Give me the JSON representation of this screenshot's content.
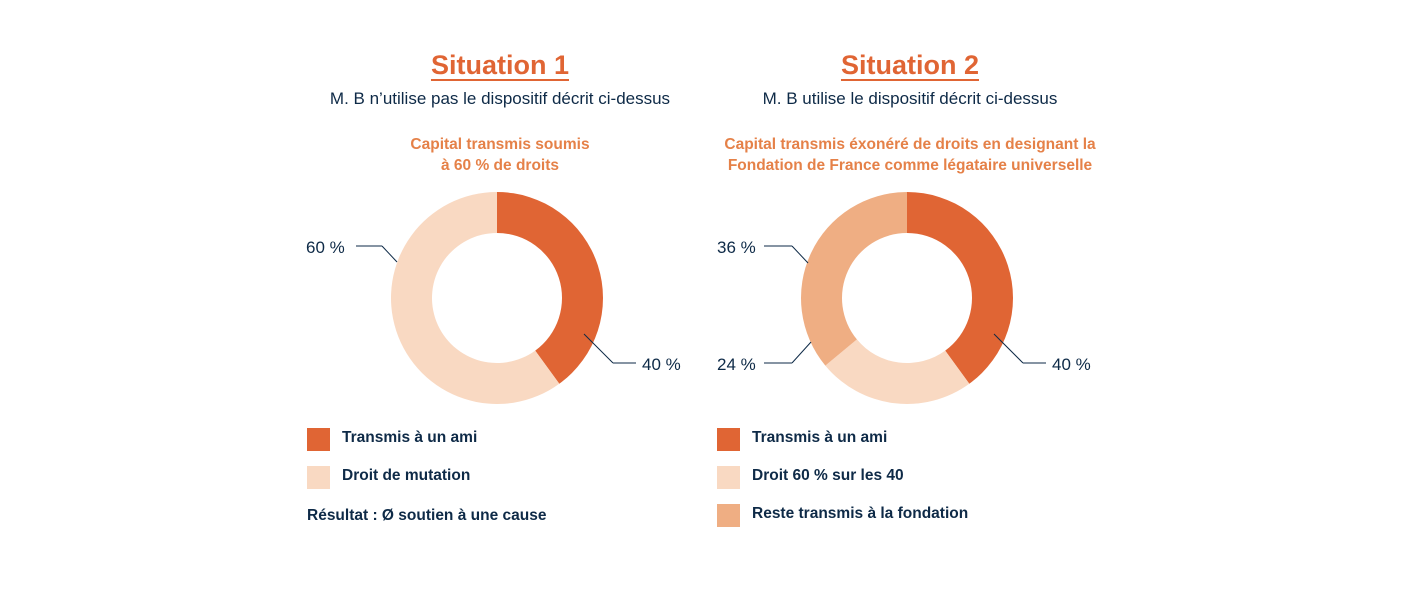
{
  "colors": {
    "dark_orange": "#e06534",
    "light_peach": "#f9d9c2",
    "mid_orange": "#efae83",
    "navy": "#0e2a47"
  },
  "chart_data": [
    {
      "type": "pie",
      "title": "Situation 1",
      "subtitle": "M. B n’utilise pas le dispositif décrit ci-dessus",
      "chart_title_lines": [
        "Capital transmis soumis",
        "à 60 % de droits"
      ],
      "categories": [
        "Transmis à un ami",
        "Droit de mutation"
      ],
      "values": [
        40,
        60
      ],
      "data_labels": [
        "40 %",
        "60 %"
      ],
      "colors": [
        "#e06534",
        "#f9d9c2"
      ],
      "legend": [
        "Transmis à un ami",
        "Droit de mutation"
      ],
      "note": "Résultat : Ø soutien à une cause"
    },
    {
      "type": "pie",
      "title": "Situation 2",
      "subtitle": "M. B utilise le dispositif décrit ci-dessus",
      "chart_title_lines": [
        "Capital transmis éxonéré de droits en designant la",
        "Fondation de France comme légataire universelle"
      ],
      "categories": [
        "Transmis à un ami",
        "Droit 60 % sur les 40",
        "Reste transmis à la fondation"
      ],
      "values": [
        40,
        24,
        36
      ],
      "data_labels": [
        "40 %",
        "24 %",
        "36 %"
      ],
      "colors": [
        "#e06534",
        "#f9d9c2",
        "#efae83"
      ],
      "legend": [
        "Transmis à un ami",
        "Droit 60 % sur les 40",
        "Reste transmis à la fondation"
      ],
      "note": ""
    }
  ]
}
